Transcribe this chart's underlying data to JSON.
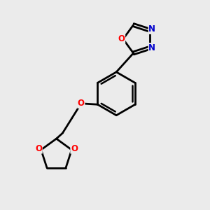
{
  "background_color": "#ebebeb",
  "bond_color": "#000000",
  "oxygen_color": "#ff0000",
  "nitrogen_color": "#0000cc",
  "line_width": 2.0,
  "figsize": [
    3.0,
    3.0
  ],
  "dpi": 100,
  "xlim": [
    0,
    10
  ],
  "ylim": [
    0,
    10
  ]
}
